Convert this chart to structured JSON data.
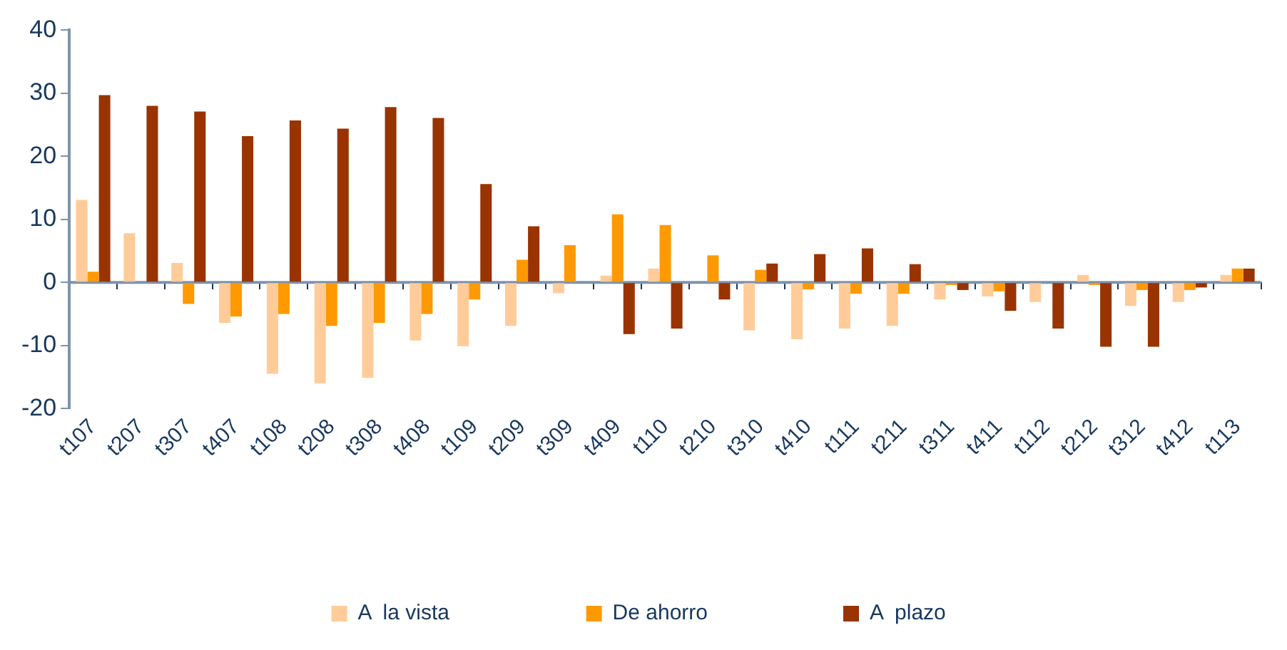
{
  "chart_data": {
    "type": "bar",
    "categories": [
      "t107",
      "t207",
      "t307",
      "t407",
      "t108",
      "t208",
      "t308",
      "t408",
      "t109",
      "t209",
      "t309",
      "t409",
      "t110",
      "t210",
      "t310",
      "t410",
      "t111",
      "t211",
      "t311",
      "t411",
      "t112",
      "t212",
      "t312",
      "t412",
      "t113"
    ],
    "series": [
      {
        "name": "A  la vista",
        "color": "#ffcc99",
        "values": [
          13.1,
          7.8,
          3.1,
          -6.4,
          -14.5,
          -16.0,
          -15.1,
          -9.2,
          -10.1,
          -6.9,
          -1.7,
          1.1,
          2.2,
          0,
          -7.6,
          -9.0,
          -7.3,
          -6.9,
          -2.7,
          -2.2,
          -3.1,
          1.2,
          -3.7,
          -3.1,
          1.2
        ]
      },
      {
        "name": "De ahorro",
        "color": "#ff9900",
        "values": [
          1.7,
          0,
          -3.4,
          -5.4,
          -5.0,
          -6.9,
          -6.4,
          -5.0,
          -2.7,
          3.6,
          5.9,
          10.8,
          9.1,
          4.3,
          2.0,
          -1.1,
          -1.8,
          -1.8,
          -0.4,
          -1.4,
          0,
          -0.4,
          -1.2,
          -1.2,
          2.2
        ]
      },
      {
        "name": "A  plazo",
        "color": "#993300",
        "values": [
          29.7,
          28.0,
          27.1,
          23.2,
          25.7,
          24.4,
          27.8,
          26.1,
          15.6,
          8.9,
          0,
          -8.2,
          -7.3,
          -2.7,
          3.0,
          4.5,
          5.4,
          2.9,
          -1.2,
          -4.5,
          -7.3,
          -10.2,
          -10.2,
          -0.8,
          2.2
        ]
      }
    ],
    "ylim": [
      -20,
      40
    ],
    "yticks": [
      -20,
      -10,
      0,
      10,
      20,
      30,
      40
    ],
    "ref_lines": [
      {
        "axis": "y",
        "value": 0,
        "color": "#7f93ab"
      }
    ],
    "grid": false,
    "legend": "bottom"
  }
}
